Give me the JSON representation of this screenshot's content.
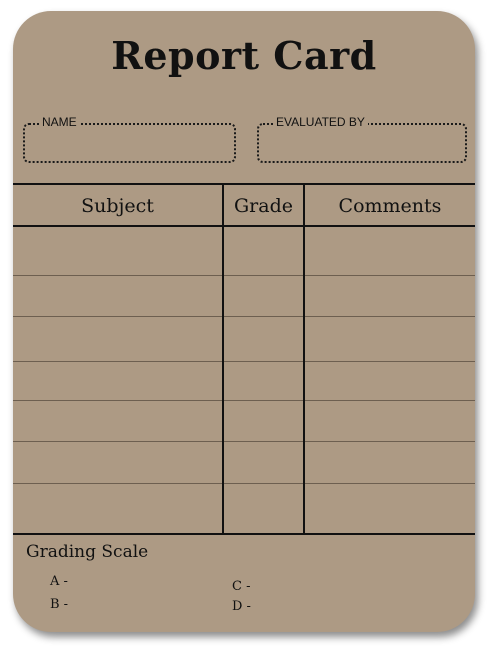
{
  "card": {
    "title": "Report Card",
    "fields": {
      "name_label": "NAME",
      "evaluated_label": "EVALUATED BY"
    },
    "table": {
      "headers": [
        "Subject",
        "Grade",
        "Comments"
      ],
      "row_count": 7
    },
    "grading_scale": {
      "title": "Grading Scale",
      "items": [
        "A -",
        "B -",
        "C -",
        "D -"
      ]
    }
  },
  "colors": {
    "card_background": "#ad9a84",
    "ink": "#111111"
  }
}
